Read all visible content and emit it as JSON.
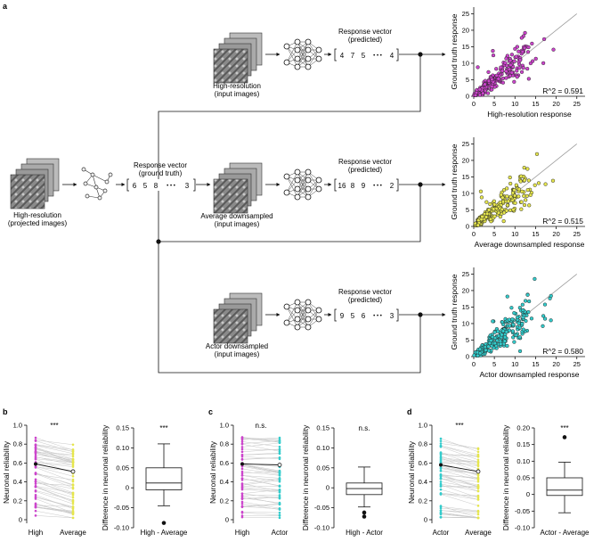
{
  "panel_labels": {
    "a": "a",
    "b": "b",
    "c": "c",
    "d": "d"
  },
  "pipeline": {
    "projected_label_1": "High-resolution",
    "projected_label_2": "(projected images)",
    "gt_title_1": "Response vector",
    "gt_title_2": "(ground truth)",
    "gt_values": [
      "6",
      "5",
      "8",
      "3"
    ],
    "ellipsis": "• • •",
    "branches": [
      {
        "input_label_1": "High-resolution",
        "input_label_2": "(input images)",
        "vector_title_1": "Response vector",
        "vector_title_2": "(predicted)",
        "values": [
          "4",
          "7",
          "5",
          "4"
        ]
      },
      {
        "input_label_1": "Average downsampled",
        "input_label_2": "(input images)",
        "vector_title_1": "Response vector",
        "vector_title_2": "(predicted)",
        "values": [
          "16",
          "8",
          "9",
          "2"
        ]
      },
      {
        "input_label_1": "Actor downsampled",
        "input_label_2": "(input images)",
        "vector_title_1": "Response vector",
        "vector_title_2": "(predicted)",
        "values": [
          "9",
          "5",
          "6",
          "3"
        ]
      }
    ]
  },
  "colors": {
    "high": "#cc44cc",
    "average": "#e6e64d",
    "actor": "#33cccc"
  },
  "chart_data": [
    {
      "type": "scatter",
      "id": "scatter-high",
      "xlabel": "High-resolution response",
      "ylabel": "Ground truth response",
      "xlim": [
        0,
        27
      ],
      "ylim": [
        0,
        27
      ],
      "xticks": [
        "0",
        "5",
        "10",
        "15",
        "20",
        "25"
      ],
      "yticks": [
        "0",
        "5",
        "10",
        "15",
        "20",
        "25"
      ],
      "annotation": "R^2 = 0.591",
      "color": "#cc44cc",
      "identity_line": true,
      "n_points": 220,
      "seed": 11
    },
    {
      "type": "scatter",
      "id": "scatter-average",
      "xlabel": "Average downsampled response",
      "ylabel": "Ground truth response",
      "xlim": [
        0,
        27
      ],
      "ylim": [
        0,
        27
      ],
      "xticks": [
        "0",
        "5",
        "10",
        "15",
        "20",
        "25"
      ],
      "yticks": [
        "0",
        "5",
        "10",
        "15",
        "20",
        "25"
      ],
      "annotation": "R^2 = 0.515",
      "color": "#e6e64d",
      "identity_line": true,
      "n_points": 220,
      "seed": 23
    },
    {
      "type": "scatter",
      "id": "scatter-actor",
      "xlabel": "Actor downsampled response",
      "ylabel": "Ground truth response",
      "xlim": [
        0,
        27
      ],
      "ylim": [
        0,
        27
      ],
      "xticks": [
        "0",
        "5",
        "10",
        "15",
        "20",
        "25"
      ],
      "yticks": [
        "0",
        "5",
        "10",
        "15",
        "20",
        "25"
      ],
      "annotation": "R^2 = 0.580",
      "color": "#33cccc",
      "identity_line": true,
      "n_points": 220,
      "seed": 37
    },
    {
      "type": "line",
      "id": "paired-b",
      "ylabel": "Neuronal reliability",
      "categories": [
        "High",
        "Average"
      ],
      "ylim": [
        0,
        1.0
      ],
      "yticks": [
        "0",
        "0.2",
        "0.4",
        "0.6",
        "0.8",
        "1.0"
      ],
      "significance": "***",
      "colors": [
        "#cc44cc",
        "#e6e64d"
      ],
      "mean": [
        0.59,
        0.51
      ],
      "seed": 5
    },
    {
      "type": "box",
      "id": "box-b",
      "ylabel": "Difference in neuronal reliability",
      "xlabel": "High - Average",
      "ylim": [
        -0.1,
        0.15
      ],
      "yticks": [
        "-0.10",
        "-0.05",
        "0",
        "0.05",
        "0.10",
        "0.15"
      ],
      "significance": "***",
      "min": -0.045,
      "q1": -0.005,
      "median": 0.012,
      "q3": 0.05,
      "max": 0.11,
      "outliers": [
        -0.088
      ]
    },
    {
      "type": "line",
      "id": "paired-c",
      "ylabel": "Neuronal reliability",
      "categories": [
        "High",
        "Actor"
      ],
      "ylim": [
        0,
        1.0
      ],
      "yticks": [
        "0",
        "0.2",
        "0.4",
        "0.6",
        "0.8",
        "1.0"
      ],
      "significance": "n.s.",
      "colors": [
        "#cc44cc",
        "#33cccc"
      ],
      "mean": [
        0.59,
        0.58
      ],
      "seed": 9
    },
    {
      "type": "box",
      "id": "box-c",
      "ylabel": "Difference in neuronal reliability",
      "xlabel": "High - Actor",
      "ylim": [
        -0.1,
        0.15
      ],
      "yticks": [
        "-0.10",
        "-0.05",
        "0",
        "0.05",
        "0.10",
        "0.15"
      ],
      "significance": "n.s.",
      "min": -0.048,
      "q1": -0.017,
      "median": -0.002,
      "q3": 0.012,
      "max": 0.052,
      "outliers": [
        -0.062,
        -0.072
      ]
    },
    {
      "type": "line",
      "id": "paired-d",
      "ylabel": "Neuronal reliability",
      "categories": [
        "Actor",
        "Average"
      ],
      "ylim": [
        0,
        1.0
      ],
      "yticks": [
        "0",
        "0.2",
        "0.4",
        "0.6",
        "0.8",
        "1.0"
      ],
      "significance": "***",
      "colors": [
        "#33cccc",
        "#e6e64d"
      ],
      "mean": [
        0.58,
        0.51
      ],
      "seed": 13
    },
    {
      "type": "box",
      "id": "box-d",
      "ylabel": "Difference in neuronal reliability",
      "xlabel": "Actor - Average",
      "ylim": [
        -0.1,
        0.2
      ],
      "yticks": [
        "-0.10",
        "-0.05",
        "0",
        "0.05",
        "0.10",
        "0.15",
        "0.20"
      ],
      "significance": "***",
      "min": -0.055,
      "q1": -0.003,
      "median": 0.013,
      "q3": 0.05,
      "max": 0.097,
      "outliers": [
        0.172
      ]
    }
  ]
}
